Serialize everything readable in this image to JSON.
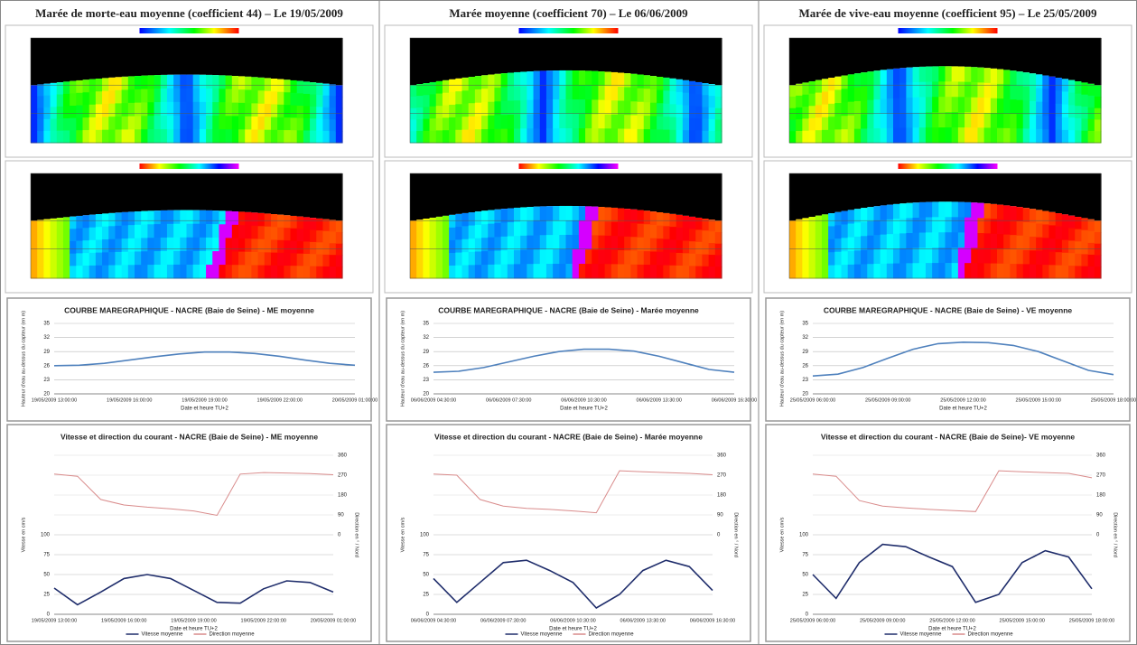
{
  "panels": [
    {
      "title": "Marée de morte-eau moyenne (coefficient 44) – Le 19/05/2009"
    },
    {
      "title": "Marée moyenne (coefficient 70) – Le 06/06/2009"
    },
    {
      "title": "Marée de vive-eau moyenne (coefficient 95) – Le 25/05/2009"
    }
  ],
  "chart_data": [
    {
      "type": "line",
      "title": "COURBE MAREGRAPHIQUE - NACRE (Baie de Seine) - ME moyenne",
      "x_label": "Date et heure TU+2",
      "y_label": "Hauteur d'eau au-dessus du capteur (en m)",
      "categories": [
        "19/05/2009 13:00:00",
        null,
        null,
        "19/05/2009 16:00:00",
        null,
        null,
        "19/05/2009 19:00:00",
        null,
        null,
        "19/05/2009 22:00:00",
        null,
        null,
        "20/05/2009 01:00:00"
      ],
      "values": [
        26.0,
        26.1,
        26.5,
        27.2,
        27.9,
        28.5,
        28.9,
        28.9,
        28.6,
        28.0,
        27.2,
        26.5,
        26.1
      ],
      "color": "#4f81bd",
      "ylim": [
        20,
        35
      ],
      "yticks": [
        20,
        23,
        26,
        29,
        32,
        35
      ],
      "grid": true
    },
    {
      "type": "line",
      "title": "Vitesse et direction du courant - NACRE (Baie de Seine) - ME moyenne",
      "x_label": "Date et heure TU+2",
      "y_label": "Vitesse en cm/s",
      "y2_label": "Direction en ° / Nord",
      "categories": [
        "19/05/2009 13:00:00",
        null,
        null,
        "19/05/2009 16:00:00",
        null,
        null,
        "19/05/2009 19:00:00",
        null,
        null,
        "19/05/2009 22:00:00",
        null,
        null,
        "20/05/2009 01:00:00"
      ],
      "series": [
        {
          "name": "Vitesse moyenne",
          "color": "#1f2d6b",
          "values": [
            33,
            12,
            28,
            45,
            50,
            45,
            30,
            15,
            14,
            32,
            42,
            40,
            28
          ]
        },
        {
          "name": "Direction moyenne",
          "color": "#d98b8b",
          "axis": "y2",
          "values": [
            275,
            265,
            160,
            135,
            125,
            118,
            108,
            88,
            275,
            282,
            280,
            277,
            272
          ]
        }
      ],
      "ylim": [
        0,
        200
      ],
      "yticks": [
        0,
        25,
        50,
        75,
        100
      ],
      "y2lim": [
        -360,
        360
      ],
      "y2ticks": [
        0,
        90,
        180,
        270,
        360
      ],
      "grid": true,
      "legend": "bottom"
    },
    {
      "type": "line",
      "title": "COURBE MAREGRAPHIQUE - NACRE (Baie de Seine) - Marée moyenne",
      "x_label": "Date et heure TU+2",
      "y_label": "Hauteur d'eau au-dessus du capteur (en m)",
      "categories": [
        "06/06/2009 04:30:00",
        null,
        null,
        "06/06/2009 07:30:00",
        null,
        null,
        "06/06/2009 10:30:00",
        null,
        null,
        "06/06/2009 13:30:00",
        null,
        null,
        "06/06/2009 16:30:00"
      ],
      "values": [
        24.6,
        24.8,
        25.6,
        26.8,
        28.0,
        29.0,
        29.5,
        29.5,
        29.1,
        28.0,
        26.6,
        25.2,
        24.6
      ],
      "color": "#4f81bd",
      "ylim": [
        20,
        35
      ],
      "yticks": [
        20,
        23,
        26,
        29,
        32,
        35
      ],
      "grid": true
    },
    {
      "type": "line",
      "title": "Vitesse et direction du courant - NACRE (Baie de Seine) - Marée moyenne",
      "x_label": "Date et heure TU+2",
      "y_label": "Vitesse en cm/s",
      "y2_label": "Direction en ° / Nord",
      "categories": [
        "06/06/2009 04:30:00",
        null,
        null,
        "06/06/2009 07:30:00",
        null,
        null,
        "06/06/2009 10:30:00",
        null,
        null,
        "06/06/2009 13:30:00",
        null,
        null,
        "06/06/2009 16:30:00"
      ],
      "series": [
        {
          "name": "Vitesse moyenne",
          "color": "#1f2d6b",
          "values": [
            45,
            15,
            40,
            65,
            68,
            55,
            40,
            8,
            25,
            55,
            68,
            60,
            30
          ]
        },
        {
          "name": "Direction moyenne",
          "color": "#d98b8b",
          "axis": "y2",
          "values": [
            275,
            270,
            160,
            130,
            120,
            115,
            108,
            100,
            290,
            285,
            282,
            278,
            272
          ]
        }
      ],
      "ylim": [
        0,
        200
      ],
      "yticks": [
        0,
        25,
        50,
        75,
        100
      ],
      "y2lim": [
        -360,
        360
      ],
      "y2ticks": [
        0,
        90,
        180,
        270,
        360
      ],
      "grid": true,
      "legend": "bottom"
    },
    {
      "type": "line",
      "title": "COURBE MAREGRAPHIQUE - NACRE (Baie de Seine) - VE moyenne",
      "x_label": "Date et heure TU+2",
      "y_label": "Hauteur d'eau au-dessus du capteur (en m)",
      "categories": [
        "25/05/2009 06:00:00",
        null,
        null,
        "25/05/2009 09:00:00",
        null,
        null,
        "25/05/2009 12:00:00",
        null,
        null,
        "25/05/2009 15:00:00",
        null,
        null,
        "25/05/2009 18:00:00"
      ],
      "values": [
        23.8,
        24.2,
        25.6,
        27.6,
        29.5,
        30.7,
        31.0,
        30.9,
        30.3,
        29.0,
        27.0,
        25.0,
        24.1
      ],
      "color": "#4f81bd",
      "ylim": [
        20,
        35
      ],
      "yticks": [
        20,
        23,
        26,
        29,
        32,
        35
      ],
      "grid": true
    },
    {
      "type": "line",
      "title": "Vitesse et direction du courant - NACRE (Baie de Seine)- VE moyenne",
      "x_label": "Date et heure TU+2",
      "y_label": "Vitesse en cm/s",
      "y2_label": "Direction en ° / Nord",
      "categories": [
        "25/05/2009 06:00:00",
        null,
        null,
        "25/05/2009 09:00:00",
        null,
        null,
        "25/05/2009 12:00:00",
        null,
        null,
        "25/05/2009 15:00:00",
        null,
        null,
        "25/05/2009 18:00:00"
      ],
      "series": [
        {
          "name": "Vitesse moyenne",
          "color": "#1f2d6b",
          "values": [
            50,
            20,
            65,
            88,
            85,
            72,
            60,
            15,
            25,
            65,
            80,
            72,
            32
          ]
        },
        {
          "name": "Direction moyenne",
          "color": "#d98b8b",
          "axis": "y2",
          "values": [
            275,
            265,
            155,
            130,
            122,
            115,
            110,
            105,
            290,
            285,
            282,
            278,
            258
          ]
        }
      ],
      "ylim": [
        0,
        200
      ],
      "yticks": [
        0,
        25,
        50,
        75,
        100
      ],
      "y2lim": [
        -360,
        360
      ],
      "y2ticks": [
        0,
        90,
        180,
        270,
        360
      ],
      "grid": true,
      "legend": "bottom"
    }
  ]
}
